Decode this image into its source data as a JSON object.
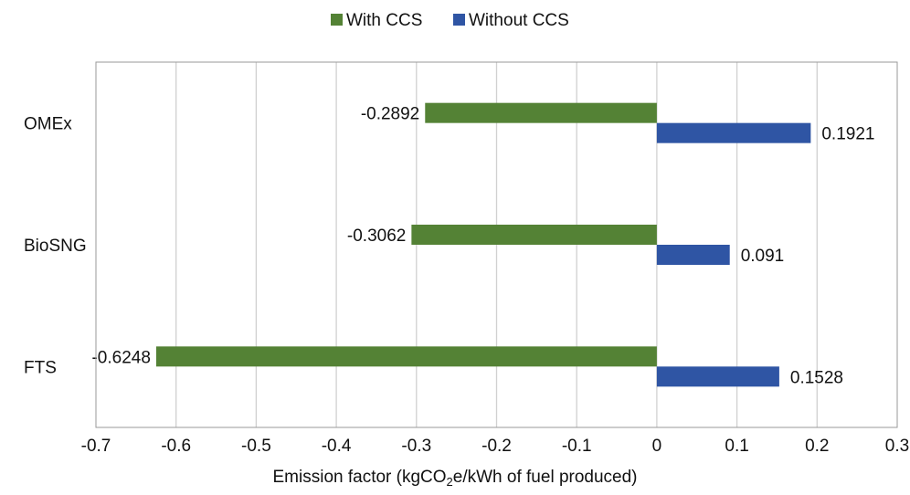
{
  "chart_data": {
    "type": "bar",
    "orientation": "horizontal",
    "categories": [
      "OMEx",
      "BioSNG",
      "FTS"
    ],
    "series": [
      {
        "name": "With CCS",
        "color": "#548235",
        "values": [
          -0.2892,
          -0.3062,
          -0.6248
        ],
        "labels": [
          "-0.2892",
          "-0.3062",
          "-0.6248"
        ]
      },
      {
        "name": "Without CCS",
        "color": "#2f55a4",
        "values": [
          0.1921,
          0.091,
          0.1528
        ],
        "labels": [
          "0.1921",
          "0.091",
          "0.1528"
        ]
      }
    ],
    "xlim": [
      -0.7,
      0.3
    ],
    "xticks": [
      -0.7,
      -0.6,
      -0.5,
      -0.4,
      -0.3,
      -0.2,
      -0.1,
      0,
      0.1,
      0.2,
      0.3
    ],
    "xtick_labels": [
      "-0.7",
      "-0.6",
      "-0.5",
      "-0.4",
      "-0.3",
      "-0.2",
      "-0.1",
      "0",
      "0.1",
      "0.2",
      "0.3"
    ],
    "xlabel": {
      "before_sub": "Emission factor (kgCO",
      "sub": "2",
      "after_sub": "e/kWh of fuel produced)"
    },
    "legend_position": "top-center",
    "grid": "vertical"
  }
}
